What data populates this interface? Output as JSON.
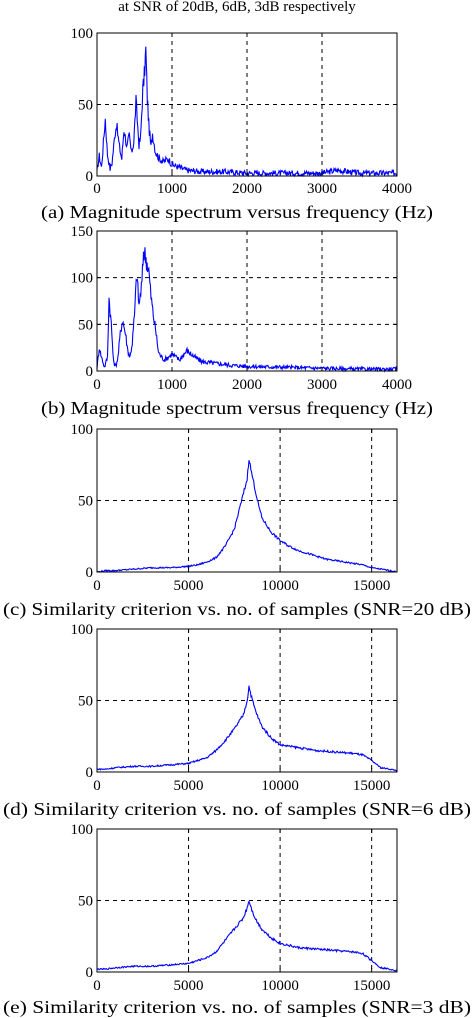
{
  "header": {
    "caption": "at SNR of 20dB, 6dB, 3dB respectively"
  },
  "style": {
    "line_color": "#0000ff",
    "axis_color": "#000000",
    "grid_color": "#000000"
  },
  "chart_data": [
    {
      "id": "a",
      "type": "line",
      "caption": "(a) Magnitude spectrum versus frequency (Hz)",
      "xlabel": "",
      "ylabel": "",
      "xlim": [
        0,
        4000
      ],
      "ylim": [
        0,
        100
      ],
      "xticks": [
        0,
        1000,
        2000,
        3000,
        4000
      ],
      "yticks": [
        0,
        50,
        100
      ],
      "grid": true,
      "series": [
        {
          "values": [
            [
              0,
              3
            ],
            [
              30,
              14
            ],
            [
              60,
              6
            ],
            [
              110,
              40
            ],
            [
              140,
              15
            ],
            [
              175,
              5
            ],
            [
              200,
              9
            ],
            [
              240,
              30
            ],
            [
              260,
              36
            ],
            [
              300,
              20
            ],
            [
              330,
              12
            ],
            [
              360,
              33
            ],
            [
              400,
              20
            ],
            [
              430,
              28
            ],
            [
              460,
              16
            ],
            [
              490,
              24
            ],
            [
              520,
              52
            ],
            [
              560,
              22
            ],
            [
              580,
              26
            ],
            [
              610,
              60
            ],
            [
              630,
              70
            ],
            [
              650,
              88
            ],
            [
              670,
              55
            ],
            [
              690,
              36
            ],
            [
              720,
              20
            ],
            [
              740,
              30
            ],
            [
              780,
              17
            ],
            [
              820,
              13
            ],
            [
              880,
              10
            ],
            [
              950,
              12
            ],
            [
              1000,
              8
            ],
            [
              1100,
              6
            ],
            [
              1200,
              4
            ],
            [
              1400,
              3
            ],
            [
              1700,
              3
            ],
            [
              2000,
              2
            ],
            [
              2500,
              2
            ],
            [
              3000,
              2
            ],
            [
              3200,
              4
            ],
            [
              3500,
              2
            ],
            [
              4000,
              2
            ]
          ]
        }
      ]
    },
    {
      "id": "b",
      "type": "line",
      "caption": "(b) Magnitude spectrum versus frequency (Hz)",
      "xlabel": "",
      "ylabel": "",
      "xlim": [
        0,
        4000
      ],
      "ylim": [
        0,
        150
      ],
      "xticks": [
        0,
        1000,
        2000,
        3000,
        4000
      ],
      "yticks": [
        0,
        50,
        100,
        150
      ],
      "grid": true,
      "series": [
        {
          "values": [
            [
              0,
              3
            ],
            [
              30,
              25
            ],
            [
              60,
              15
            ],
            [
              100,
              4
            ],
            [
              140,
              15
            ],
            [
              160,
              78
            ],
            [
              190,
              50
            ],
            [
              220,
              10
            ],
            [
              250,
              5
            ],
            [
              280,
              15
            ],
            [
              310,
              40
            ],
            [
              340,
              55
            ],
            [
              380,
              40
            ],
            [
              410,
              22
            ],
            [
              440,
              15
            ],
            [
              470,
              30
            ],
            [
              500,
              60
            ],
            [
              530,
              105
            ],
            [
              560,
              70
            ],
            [
              600,
              95
            ],
            [
              620,
              128
            ],
            [
              640,
              125
            ],
            [
              660,
              118
            ],
            [
              690,
              108
            ],
            [
              720,
              80
            ],
            [
              750,
              60
            ],
            [
              780,
              45
            ],
            [
              820,
              20
            ],
            [
              860,
              15
            ],
            [
              900,
              12
            ],
            [
              1000,
              18
            ],
            [
              1100,
              12
            ],
            [
              1200,
              22
            ],
            [
              1300,
              15
            ],
            [
              1400,
              10
            ],
            [
              1600,
              8
            ],
            [
              1800,
              6
            ],
            [
              2000,
              5
            ],
            [
              2500,
              4
            ],
            [
              3000,
              3
            ],
            [
              3500,
              2
            ],
            [
              4000,
              2
            ]
          ]
        }
      ]
    },
    {
      "id": "c",
      "type": "line",
      "caption": "(c) Similarity criterion vs. no. of samples (SNR=20 dB)",
      "xlabel": "",
      "ylabel": "",
      "xlim": [
        0,
        16384
      ],
      "ylim": [
        0,
        100
      ],
      "xticks": [
        0,
        5000,
        10000,
        15000
      ],
      "yticks": [
        0,
        50,
        100
      ],
      "grid": true,
      "series": [
        {
          "values": [
            [
              0,
              0
            ],
            [
              500,
              1
            ],
            [
              1000,
              1
            ],
            [
              2000,
              2
            ],
            [
              3000,
              3
            ],
            [
              4000,
              3
            ],
            [
              5000,
              4
            ],
            [
              5500,
              5
            ],
            [
              6000,
              7
            ],
            [
              6500,
              10
            ],
            [
              7000,
              18
            ],
            [
              7500,
              30
            ],
            [
              7800,
              45
            ],
            [
              8000,
              55
            ],
            [
              8200,
              65
            ],
            [
              8300,
              80
            ],
            [
              8400,
              72
            ],
            [
              8600,
              60
            ],
            [
              8800,
              48
            ],
            [
              9000,
              38
            ],
            [
              9500,
              28
            ],
            [
              10000,
              22
            ],
            [
              10500,
              18
            ],
            [
              11000,
              15
            ],
            [
              11500,
              13
            ],
            [
              12000,
              11
            ],
            [
              12500,
              9
            ],
            [
              13000,
              8
            ],
            [
              13500,
              7
            ],
            [
              14000,
              6
            ],
            [
              14500,
              5
            ],
            [
              15000,
              3
            ],
            [
              15500,
              2
            ],
            [
              16000,
              1
            ],
            [
              16384,
              0
            ]
          ]
        }
      ]
    },
    {
      "id": "d",
      "type": "line",
      "caption": "(d) Similarity criterion vs. no. of samples (SNR=6 dB)",
      "xlabel": "",
      "ylabel": "",
      "xlim": [
        0,
        16384
      ],
      "ylim": [
        0,
        100
      ],
      "xticks": [
        0,
        5000,
        10000,
        15000
      ],
      "yticks": [
        0,
        50,
        100
      ],
      "grid": true,
      "series": [
        {
          "values": [
            [
              0,
              2
            ],
            [
              500,
              2
            ],
            [
              1000,
              3
            ],
            [
              2000,
              4
            ],
            [
              3000,
              4
            ],
            [
              4000,
              5
            ],
            [
              5000,
              6
            ],
            [
              5500,
              8
            ],
            [
              6000,
              10
            ],
            [
              6500,
              15
            ],
            [
              7000,
              22
            ],
            [
              7500,
              30
            ],
            [
              8000,
              40
            ],
            [
              8200,
              50
            ],
            [
              8300,
              60
            ],
            [
              8450,
              52
            ],
            [
              8600,
              45
            ],
            [
              8800,
              38
            ],
            [
              9000,
              32
            ],
            [
              9500,
              24
            ],
            [
              10000,
              19
            ],
            [
              11000,
              17
            ],
            [
              12000,
              15
            ],
            [
              13000,
              14
            ],
            [
              14000,
              13
            ],
            [
              14500,
              12
            ],
            [
              15000,
              8
            ],
            [
              15500,
              3
            ],
            [
              16000,
              2
            ],
            [
              16384,
              1
            ]
          ]
        }
      ]
    },
    {
      "id": "e",
      "type": "line",
      "caption": "(e) Similarity criterion vs. no. of samples (SNR=3 dB)",
      "xlabel": "",
      "ylabel": "",
      "xlim": [
        0,
        16384
      ],
      "ylim": [
        0,
        100
      ],
      "xticks": [
        0,
        5000,
        10000,
        15000
      ],
      "yticks": [
        0,
        50,
        100
      ],
      "grid": true,
      "series": [
        {
          "values": [
            [
              0,
              2
            ],
            [
              500,
              2
            ],
            [
              1000,
              3
            ],
            [
              2000,
              4
            ],
            [
              3000,
              4
            ],
            [
              4000,
              5
            ],
            [
              5000,
              6
            ],
            [
              5500,
              8
            ],
            [
              6000,
              10
            ],
            [
              6500,
              14
            ],
            [
              7000,
              22
            ],
            [
              7500,
              30
            ],
            [
              8000,
              38
            ],
            [
              8200,
              45
            ],
            [
              8300,
              50
            ],
            [
              8500,
              42
            ],
            [
              8700,
              36
            ],
            [
              9000,
              30
            ],
            [
              9500,
              24
            ],
            [
              10000,
              20
            ],
            [
              11000,
              17
            ],
            [
              12000,
              16
            ],
            [
              13000,
              15
            ],
            [
              14000,
              14
            ],
            [
              14500,
              13
            ],
            [
              15000,
              8
            ],
            [
              15500,
              3
            ],
            [
              16000,
              2
            ],
            [
              16384,
              1
            ]
          ]
        }
      ]
    }
  ]
}
